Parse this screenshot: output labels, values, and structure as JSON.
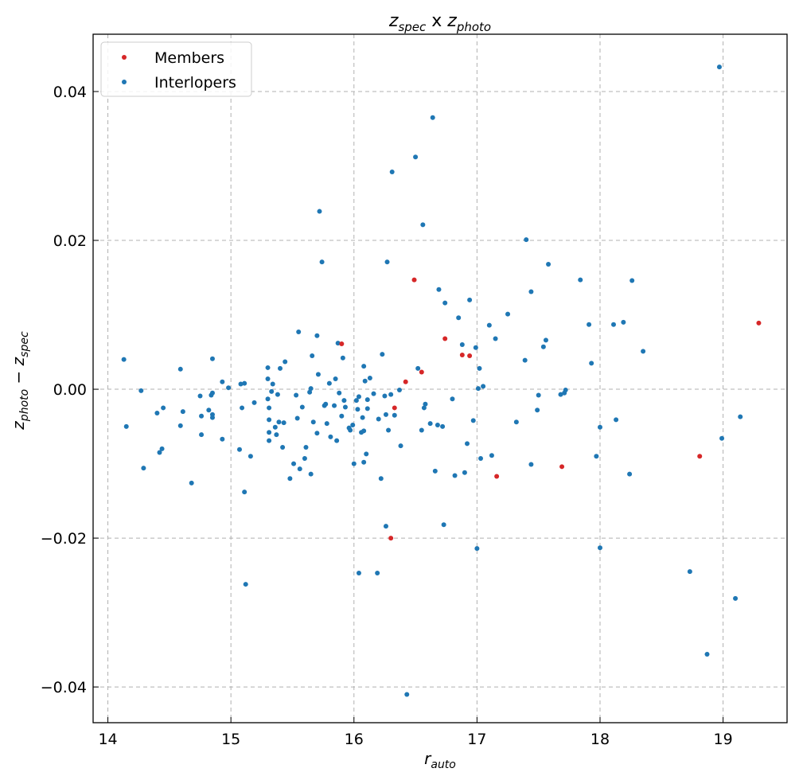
{
  "chart_data": {
    "type": "scatter",
    "title": {
      "base1": "z",
      "sub1": "spec",
      "mid": " x ",
      "base2": "z",
      "sub2": "photo"
    },
    "xlabel": {
      "base": "r",
      "sub": "auto"
    },
    "ylabel": {
      "base1": "z",
      "sub1": "photo",
      "mid": " − ",
      "base2": "z",
      "sub2": "spec"
    },
    "xlim": [
      13.88,
      19.52
    ],
    "ylim": [
      -0.0448,
      0.0477
    ],
    "xticks": [
      14,
      15,
      16,
      17,
      18,
      19
    ],
    "xtick_labels": [
      "14",
      "15",
      "16",
      "17",
      "18",
      "19"
    ],
    "yticks": [
      -0.04,
      -0.02,
      0.0,
      0.02,
      0.04
    ],
    "ytick_labels": [
      "−0.04",
      "−0.02",
      "0.00",
      "0.02",
      "0.04"
    ],
    "grid": true,
    "legend_position": "top-left",
    "colors": {
      "members": "#d62728",
      "interlopers": "#1f77b4"
    },
    "series": [
      {
        "name": "Members",
        "color": "#d62728",
        "points": [
          [
            15.9,
            0.0061
          ],
          [
            16.33,
            -0.0025
          ],
          [
            16.3,
            -0.02
          ],
          [
            16.42,
            0.001
          ],
          [
            16.49,
            0.0147
          ],
          [
            16.55,
            0.0023
          ],
          [
            16.74,
            0.0068
          ],
          [
            16.88,
            0.0046
          ],
          [
            16.94,
            0.0045
          ],
          [
            17.16,
            -0.0117
          ],
          [
            17.69,
            -0.0104
          ],
          [
            18.81,
            -0.009
          ],
          [
            19.29,
            0.0089
          ]
        ]
      },
      {
        "name": "Interlopers",
        "color": "#1f77b4",
        "points": [
          [
            14.13,
            0.004
          ],
          [
            14.15,
            -0.005
          ],
          [
            14.27,
            -0.0002
          ],
          [
            14.29,
            -0.0106
          ],
          [
            14.4,
            -0.0032
          ],
          [
            14.42,
            -0.0085
          ],
          [
            14.44,
            -0.008
          ],
          [
            14.45,
            -0.0025
          ],
          [
            14.59,
            0.0027
          ],
          [
            14.59,
            -0.0049
          ],
          [
            14.61,
            -0.003
          ],
          [
            14.68,
            -0.0126
          ],
          [
            14.75,
            -0.0009
          ],
          [
            14.76,
            -0.0061
          ],
          [
            14.76,
            -0.0036
          ],
          [
            14.82,
            -0.0028
          ],
          [
            14.84,
            -0.0008
          ],
          [
            14.85,
            -0.0005
          ],
          [
            14.85,
            0.0041
          ],
          [
            14.85,
            -0.0034
          ],
          [
            14.85,
            -0.0038
          ],
          [
            14.93,
            0.001
          ],
          [
            14.93,
            -0.0067
          ],
          [
            14.98,
            0.0002
          ],
          [
            15.07,
            -0.0081
          ],
          [
            15.08,
            0.0007
          ],
          [
            15.09,
            -0.0025
          ],
          [
            15.11,
            0.0008
          ],
          [
            15.11,
            -0.0138
          ],
          [
            15.12,
            -0.0262
          ],
          [
            15.16,
            -0.009
          ],
          [
            15.19,
            -0.0018
          ],
          [
            15.3,
            0.0029
          ],
          [
            15.3,
            0.0014
          ],
          [
            15.3,
            -0.0013
          ],
          [
            15.31,
            -0.0041
          ],
          [
            15.31,
            -0.0058
          ],
          [
            15.31,
            -0.0069
          ],
          [
            15.31,
            -0.0025
          ],
          [
            15.33,
            -0.0003
          ],
          [
            15.34,
            0.0007
          ],
          [
            15.36,
            -0.0051
          ],
          [
            15.37,
            -0.0061
          ],
          [
            15.38,
            -0.0007
          ],
          [
            15.39,
            -0.0044
          ],
          [
            15.4,
            0.0028
          ],
          [
            15.42,
            -0.0078
          ],
          [
            15.43,
            -0.0045
          ],
          [
            15.44,
            0.0037
          ],
          [
            15.48,
            -0.012
          ],
          [
            15.51,
            -0.01
          ],
          [
            15.53,
            -0.0008
          ],
          [
            15.54,
            -0.0039
          ],
          [
            15.55,
            0.0077
          ],
          [
            15.56,
            -0.0107
          ],
          [
            15.58,
            -0.0024
          ],
          [
            15.6,
            -0.0093
          ],
          [
            15.61,
            -0.0078
          ],
          [
            15.64,
            -0.0004
          ],
          [
            15.65,
            0.0001
          ],
          [
            15.65,
            -0.0114
          ],
          [
            15.66,
            0.0045
          ],
          [
            15.67,
            -0.0044
          ],
          [
            15.7,
            0.0072
          ],
          [
            15.7,
            -0.0059
          ],
          [
            15.71,
            0.002
          ],
          [
            15.72,
            0.0239
          ],
          [
            15.74,
            0.0171
          ],
          [
            15.76,
            -0.0022
          ],
          [
            15.77,
            -0.002
          ],
          [
            15.78,
            -0.0046
          ],
          [
            15.8,
            0.0008
          ],
          [
            15.81,
            -0.0064
          ],
          [
            15.84,
            -0.0022
          ],
          [
            15.85,
            0.0014
          ],
          [
            15.86,
            -0.0069
          ],
          [
            15.87,
            0.0062
          ],
          [
            15.88,
            -0.0005
          ],
          [
            15.9,
            -0.0036
          ],
          [
            15.91,
            0.0042
          ],
          [
            15.92,
            -0.0015
          ],
          [
            15.93,
            -0.0024
          ],
          [
            15.96,
            -0.0052
          ],
          [
            15.97,
            -0.0055
          ],
          [
            15.99,
            -0.0048
          ],
          [
            16.0,
            -0.01
          ],
          [
            16.02,
            -0.0015
          ],
          [
            16.03,
            -0.0027
          ],
          [
            16.04,
            -0.001
          ],
          [
            16.04,
            -0.0247
          ],
          [
            16.06,
            -0.0058
          ],
          [
            16.07,
            -0.0038
          ],
          [
            16.08,
            -0.0056
          ],
          [
            16.08,
            0.0031
          ],
          [
            16.08,
            -0.0098
          ],
          [
            16.09,
            0.0011
          ],
          [
            16.1,
            -0.0087
          ],
          [
            16.11,
            -0.0026
          ],
          [
            16.11,
            -0.0014
          ],
          [
            16.13,
            0.0015
          ],
          [
            16.16,
            -0.0006
          ],
          [
            16.19,
            -0.0247
          ],
          [
            16.2,
            -0.004
          ],
          [
            16.22,
            -0.012
          ],
          [
            16.23,
            0.0047
          ],
          [
            16.25,
            -0.0009
          ],
          [
            16.26,
            -0.0184
          ],
          [
            16.26,
            -0.0034
          ],
          [
            16.27,
            0.0171
          ],
          [
            16.28,
            -0.0055
          ],
          [
            16.3,
            -0.0007
          ],
          [
            16.31,
            0.0292
          ],
          [
            16.33,
            -0.0035
          ],
          [
            16.37,
            -0.0001
          ],
          [
            16.38,
            -0.0076
          ],
          [
            16.43,
            -0.041
          ],
          [
            16.5,
            0.0312
          ],
          [
            16.52,
            0.0028
          ],
          [
            16.55,
            -0.0055
          ],
          [
            16.56,
            0.0221
          ],
          [
            16.57,
            -0.0025
          ],
          [
            16.58,
            -0.002
          ],
          [
            16.62,
            -0.0046
          ],
          [
            16.64,
            0.0365
          ],
          [
            16.66,
            -0.011
          ],
          [
            16.68,
            -0.0048
          ],
          [
            16.69,
            0.0134
          ],
          [
            16.72,
            -0.005
          ],
          [
            16.73,
            -0.0182
          ],
          [
            16.74,
            0.0116
          ],
          [
            16.8,
            -0.0013
          ],
          [
            16.82,
            -0.0116
          ],
          [
            16.85,
            0.0096
          ],
          [
            16.88,
            0.006
          ],
          [
            16.9,
            -0.0112
          ],
          [
            16.92,
            -0.0073
          ],
          [
            16.94,
            0.012
          ],
          [
            16.97,
            -0.0042
          ],
          [
            16.99,
            0.0056
          ],
          [
            17.0,
            -0.0214
          ],
          [
            17.01,
            0.0001
          ],
          [
            17.02,
            0.0028
          ],
          [
            17.03,
            -0.0093
          ],
          [
            17.05,
            0.0004
          ],
          [
            17.1,
            0.0086
          ],
          [
            17.12,
            -0.0089
          ],
          [
            17.15,
            0.0068
          ],
          [
            17.25,
            0.0101
          ],
          [
            17.32,
            -0.0044
          ],
          [
            17.39,
            0.0039
          ],
          [
            17.4,
            0.0201
          ],
          [
            17.44,
            0.0131
          ],
          [
            17.44,
            -0.0101
          ],
          [
            17.49,
            -0.0028
          ],
          [
            17.5,
            -0.0008
          ],
          [
            17.54,
            0.0057
          ],
          [
            17.56,
            0.0066
          ],
          [
            17.58,
            0.0168
          ],
          [
            17.68,
            -0.0007
          ],
          [
            17.71,
            -0.0005
          ],
          [
            17.72,
            -0.0001
          ],
          [
            17.84,
            0.0147
          ],
          [
            17.91,
            0.0087
          ],
          [
            17.93,
            0.0035
          ],
          [
            17.97,
            -0.009
          ],
          [
            18.0,
            -0.0051
          ],
          [
            18.0,
            -0.0213
          ],
          [
            18.11,
            0.0087
          ],
          [
            18.13,
            -0.0041
          ],
          [
            18.19,
            0.009
          ],
          [
            18.24,
            -0.0114
          ],
          [
            18.26,
            0.0146
          ],
          [
            18.35,
            0.0051
          ],
          [
            18.73,
            -0.0245
          ],
          [
            18.87,
            -0.0356
          ],
          [
            18.97,
            0.0433
          ],
          [
            18.99,
            -0.0066
          ],
          [
            19.1,
            -0.0281
          ],
          [
            19.14,
            -0.0037
          ]
        ]
      }
    ]
  }
}
